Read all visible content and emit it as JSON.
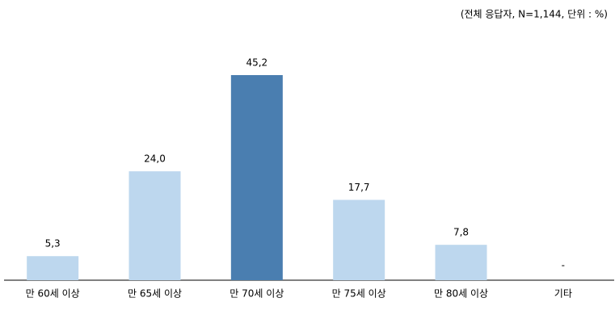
{
  "chart_data": {
    "type": "bar",
    "subtitle": "(전체 응답자, N=1,144, 단위 : %)",
    "categories": [
      "만 60세 이상",
      "만 65세 이상",
      "만 70세 이상",
      "만 75세 이상",
      "만 80세 이상",
      "기타"
    ],
    "values": [
      5.3,
      24.0,
      45.2,
      17.7,
      7.8,
      null
    ],
    "value_labels": [
      "5,3",
      "24,0",
      "45,2",
      "17,7",
      "7,8",
      "-"
    ],
    "colors": [
      "#bdd7ee",
      "#bdd7ee",
      "#4a7eb0",
      "#bdd7ee",
      "#bdd7ee",
      "#bdd7ee"
    ]
  }
}
